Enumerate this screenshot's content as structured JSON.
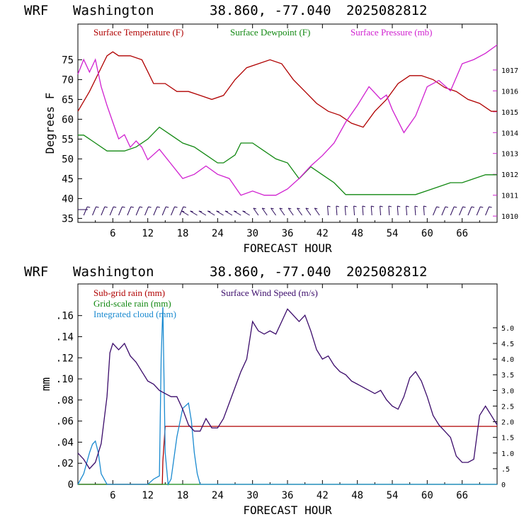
{
  "header_top": {
    "model": "WRF",
    "location": "Washington",
    "coords": "38.860, -77.040",
    "run": "2025082812"
  },
  "header_bottom": {
    "model": "WRF",
    "location": "Washington",
    "coords": "38.860, -77.040",
    "run": "2025082812"
  },
  "colors": {
    "temperature": "#b00000",
    "dewpoint": "#118811",
    "pressure": "#d020d0",
    "wind_barb": "#2a0a5a",
    "subgrid_rain": "#b00000",
    "grid_rain": "#118811",
    "cloud": "#1a8ad0",
    "wind_speed": "#3a0a6a"
  },
  "chart_data": [
    {
      "type": "line",
      "x_label": "FORECAST HOUR",
      "y_label": "Degrees F",
      "x_ticks": [
        6,
        12,
        18,
        24,
        30,
        36,
        42,
        48,
        54,
        60,
        66
      ],
      "y_ticks_left": [
        35,
        40,
        45,
        50,
        55,
        60,
        65,
        70,
        75
      ],
      "y_ticks_right": [
        1010,
        1011,
        1012,
        1013,
        1014,
        1015,
        1016,
        1017
      ],
      "xlim": [
        0,
        72
      ],
      "ylim_left": [
        34,
        84
      ],
      "ylim_right": [
        1009.7,
        1019.2
      ],
      "legend": [
        "Surface Temperature (F)",
        "Surface Dewpoint (F)",
        "Surface Pressure (mb)"
      ],
      "series": [
        {
          "name": "Surface Temperature (F)",
          "axis": "left",
          "x": [
            0,
            2,
            4,
            5,
            6,
            7,
            9,
            11,
            12,
            13,
            15,
            17,
            19,
            21,
            23,
            25,
            27,
            29,
            31,
            33,
            35,
            37,
            39,
            41,
            43,
            45,
            47,
            49,
            51,
            53,
            55,
            57,
            59,
            61,
            63,
            65,
            67,
            69,
            71,
            72
          ],
          "values": [
            62,
            67,
            73,
            76,
            77,
            76,
            76,
            75,
            72,
            69,
            69,
            67,
            67,
            66,
            65,
            66,
            70,
            73,
            74,
            75,
            74,
            70,
            67,
            64,
            62,
            61,
            59,
            58,
            62,
            65,
            69,
            71,
            71,
            70,
            68,
            67,
            65,
            64,
            62,
            62
          ]
        },
        {
          "name": "Surface Dewpoint (F)",
          "axis": "left",
          "x": [
            0,
            1,
            3,
            5,
            6,
            8,
            10,
            12,
            14,
            16,
            18,
            20,
            22,
            24,
            25,
            27,
            28,
            30,
            32,
            34,
            36,
            38,
            40,
            42,
            44,
            46,
            48,
            50,
            52,
            54,
            56,
            58,
            60,
            62,
            64,
            66,
            68,
            70,
            72
          ],
          "values": [
            56,
            56,
            54,
            52,
            52,
            52,
            53,
            55,
            58,
            56,
            54,
            53,
            51,
            49,
            49,
            51,
            54,
            54,
            52,
            50,
            49,
            45,
            48,
            46,
            44,
            41,
            41,
            41,
            41,
            41,
            41,
            41,
            42,
            43,
            44,
            44,
            45,
            46,
            46
          ]
        },
        {
          "name": "Surface Pressure (mb)",
          "axis": "right",
          "x": [
            0,
            1,
            2,
            3,
            4,
            5,
            6,
            7,
            8,
            9,
            10,
            11,
            12,
            14,
            16,
            18,
            20,
            22,
            24,
            26,
            28,
            30,
            32,
            34,
            36,
            38,
            40,
            42,
            44,
            46,
            48,
            50,
            52,
            53,
            54,
            56,
            58,
            60,
            62,
            64,
            66,
            68,
            70,
            72
          ],
          "values": [
            1016.8,
            1017.5,
            1016.9,
            1017.5,
            1016.2,
            1015.3,
            1014.5,
            1013.7,
            1013.9,
            1013.3,
            1013.6,
            1013.3,
            1012.7,
            1013.2,
            1012.5,
            1011.8,
            1012.0,
            1012.4,
            1012.0,
            1011.8,
            1011.0,
            1011.2,
            1011.0,
            1011.0,
            1011.3,
            1011.8,
            1012.4,
            1012.9,
            1013.5,
            1014.5,
            1015.3,
            1016.2,
            1015.6,
            1015.8,
            1015.1,
            1014.0,
            1014.8,
            1016.2,
            1016.5,
            1016.0,
            1017.3,
            1017.5,
            1017.8,
            1018.2
          ]
        }
      ]
    },
    {
      "type": "line",
      "x_label": "FORECAST HOUR",
      "y_label": "mm",
      "x_ticks": [
        6,
        12,
        18,
        24,
        30,
        36,
        42,
        48,
        54,
        60,
        66
      ],
      "y_ticks_left": [
        "0",
        ".02",
        ".04",
        ".06",
        ".08",
        ".10",
        ".12",
        ".14",
        ".16"
      ],
      "y_ticks_right": [
        "0",
        ".5",
        "1.0",
        "1.5",
        "2.0",
        "2.5",
        "3.0",
        "3.5",
        "4.0",
        "4.5",
        "5.0"
      ],
      "xlim": [
        0,
        72
      ],
      "ylim_left": [
        0,
        0.19
      ],
      "ylim_right": [
        0,
        6.4
      ],
      "legend": [
        "Sub-grid rain (mm)",
        "Grid-scale rain (mm)",
        "Integrated cloud (mm)",
        "Surface Wind Speed (m/s)"
      ],
      "series": [
        {
          "name": "Sub-grid rain (mm)",
          "axis": "left",
          "x": [
            0,
            14.5,
            14.6,
            15,
            72
          ],
          "values": [
            0,
            0,
            0.022,
            0.055,
            0.055
          ]
        },
        {
          "name": "Grid-scale rain (mm)",
          "axis": "left",
          "x": [
            0,
            72
          ],
          "values": [
            0,
            0
          ]
        },
        {
          "name": "Integrated cloud (mm)",
          "axis": "left",
          "x": [
            0,
            1,
            2,
            2.5,
            3,
            3.5,
            4,
            5,
            12,
            13,
            14,
            14.3,
            14.6,
            15,
            15.5,
            16,
            17,
            18,
            19,
            19.5,
            20,
            20.5,
            21,
            72
          ],
          "values": [
            0,
            0.01,
            0.03,
            0.038,
            0.041,
            0.03,
            0.01,
            0,
            0,
            0.005,
            0.008,
            0.12,
            0.168,
            0.03,
            0,
            0.005,
            0.045,
            0.072,
            0.077,
            0.06,
            0.03,
            0.01,
            0,
            0
          ]
        },
        {
          "name": "Surface Wind Speed (m/s)",
          "axis": "right",
          "x": [
            0,
            1,
            2,
            3,
            4,
            5,
            5.5,
            6,
            7,
            8,
            9,
            10,
            11,
            12,
            13,
            14,
            15,
            16,
            17,
            18,
            19,
            20,
            21,
            22,
            23,
            24,
            25,
            26,
            27,
            28,
            29,
            30,
            31,
            32,
            33,
            34,
            35,
            36,
            37,
            38,
            39,
            40,
            41,
            42,
            43,
            44,
            45,
            46,
            47,
            48,
            49,
            50,
            51,
            52,
            53,
            54,
            55,
            56,
            57,
            58,
            59,
            60,
            61,
            62,
            63,
            64,
            65,
            66,
            67,
            68,
            69,
            70,
            71,
            72
          ],
          "values": [
            1.0,
            0.8,
            0.5,
            0.7,
            1.3,
            2.8,
            4.2,
            4.5,
            4.3,
            4.5,
            4.1,
            3.9,
            3.6,
            3.3,
            3.2,
            3.0,
            2.9,
            2.8,
            2.8,
            2.4,
            1.9,
            1.7,
            1.7,
            2.1,
            1.8,
            1.8,
            2.1,
            2.6,
            3.1,
            3.6,
            4.0,
            5.2,
            4.9,
            4.8,
            4.9,
            4.8,
            5.2,
            5.6,
            5.4,
            5.2,
            5.4,
            4.9,
            4.3,
            4.0,
            4.1,
            3.8,
            3.6,
            3.5,
            3.3,
            3.2,
            3.1,
            3.0,
            2.9,
            3.0,
            2.7,
            2.5,
            2.4,
            2.8,
            3.4,
            3.6,
            3.3,
            2.8,
            2.2,
            1.9,
            1.7,
            1.5,
            0.9,
            0.7,
            0.7,
            0.8,
            2.2,
            2.5,
            2.2,
            1.9
          ]
        }
      ]
    }
  ]
}
